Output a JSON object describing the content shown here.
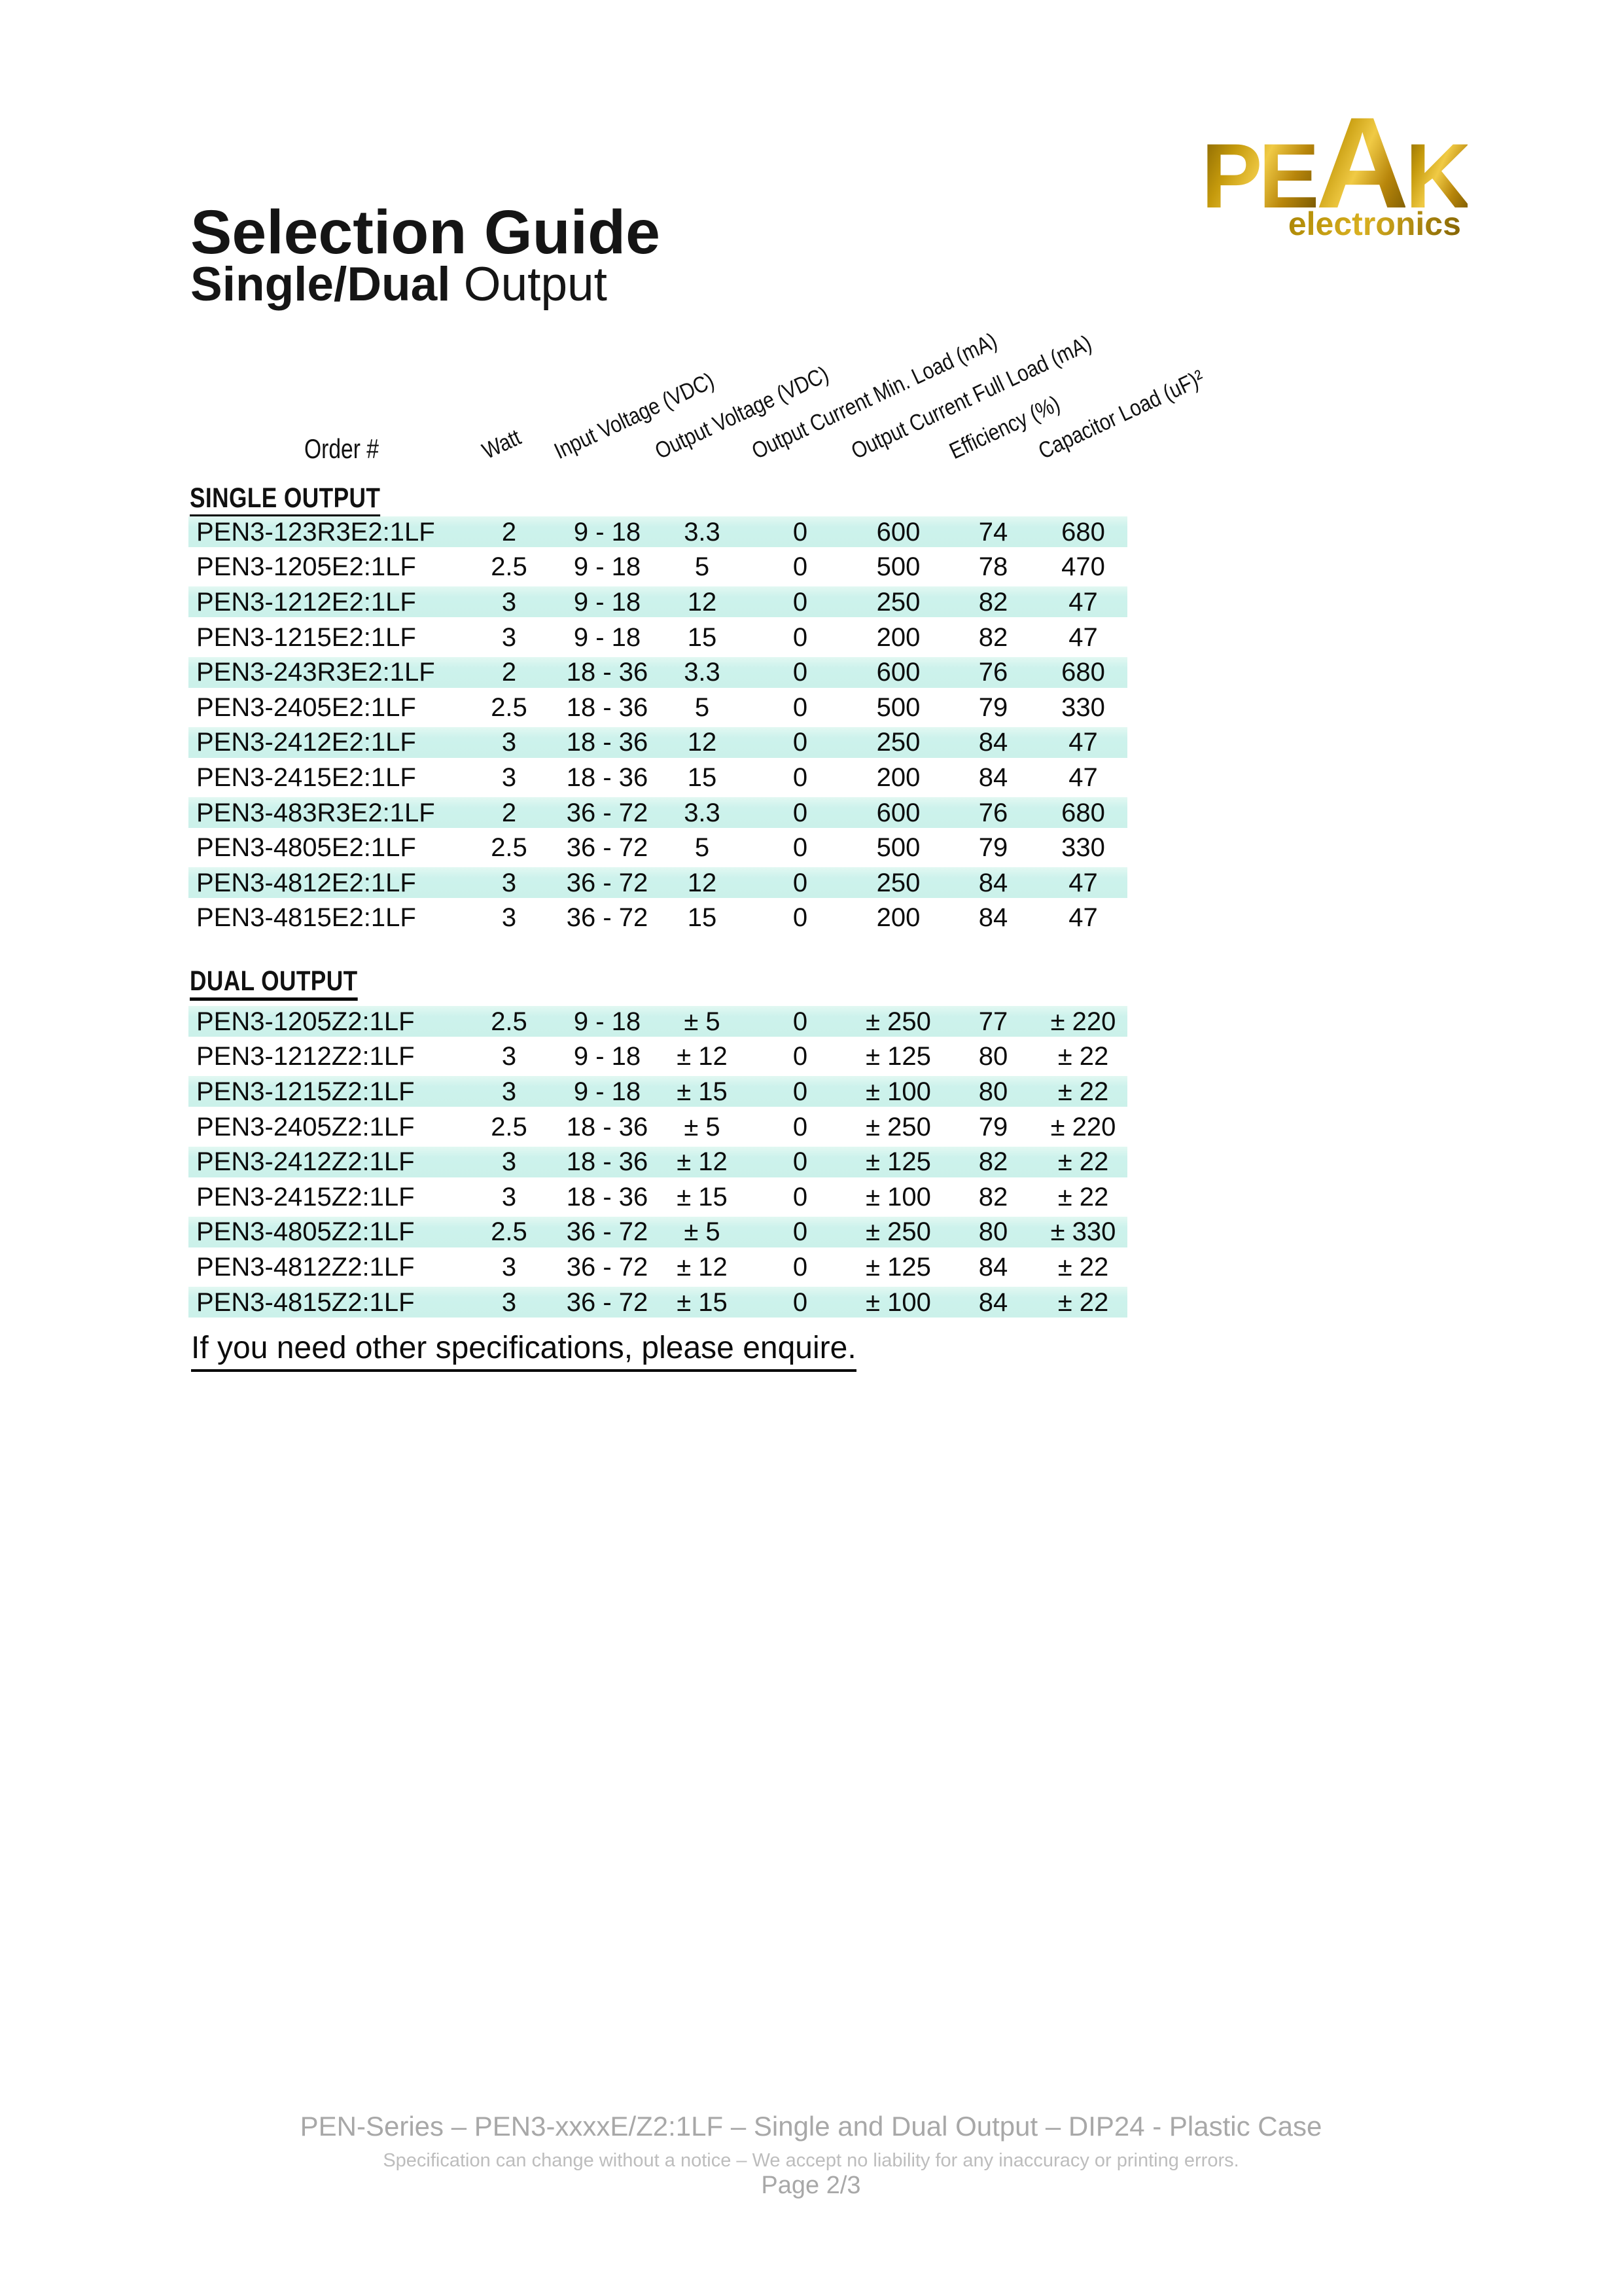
{
  "page": {
    "title": "Selection Guide",
    "subtitle_bold": "Single/Dual",
    "subtitle_rest": " Output",
    "note": "If you need other specifications, please enquire."
  },
  "logo": {
    "part1": "PE",
    "accent": "A",
    "part2": "K",
    "sub": "electronics",
    "gold_color": "#c59a0c"
  },
  "colors": {
    "row_highlight": "#cdf2ec",
    "footer_gray": "#a8a8a8",
    "text": "#0c0c0c"
  },
  "table": {
    "col_headers": [
      "Order #",
      "Watt",
      "Input Voltage (VDC)",
      "Output Voltage (VDC)",
      "Output Current Min. Load (mA)",
      "Output Current Full Load (mA)",
      "Efficiency (%)",
      "Capacitor Load (uF)²"
    ],
    "sections": [
      {
        "title": "SINGLE OUTPUT",
        "rows": [
          [
            "PEN3-123R3E2:1LF",
            "2",
            "9 - 18",
            "3.3",
            "0",
            "600",
            "74",
            "680"
          ],
          [
            "PEN3-1205E2:1LF",
            "2.5",
            "9 - 18",
            "5",
            "0",
            "500",
            "78",
            "470"
          ],
          [
            "PEN3-1212E2:1LF",
            "3",
            "9 - 18",
            "12",
            "0",
            "250",
            "82",
            "47"
          ],
          [
            "PEN3-1215E2:1LF",
            "3",
            "9 - 18",
            "15",
            "0",
            "200",
            "82",
            "47"
          ],
          [
            "PEN3-243R3E2:1LF",
            "2",
            "18 - 36",
            "3.3",
            "0",
            "600",
            "76",
            "680"
          ],
          [
            "PEN3-2405E2:1LF",
            "2.5",
            "18 - 36",
            "5",
            "0",
            "500",
            "79",
            "330"
          ],
          [
            "PEN3-2412E2:1LF",
            "3",
            "18 - 36",
            "12",
            "0",
            "250",
            "84",
            "47"
          ],
          [
            "PEN3-2415E2:1LF",
            "3",
            "18 - 36",
            "15",
            "0",
            "200",
            "84",
            "47"
          ],
          [
            "PEN3-483R3E2:1LF",
            "2",
            "36 - 72",
            "3.3",
            "0",
            "600",
            "76",
            "680"
          ],
          [
            "PEN3-4805E2:1LF",
            "2.5",
            "36 - 72",
            "5",
            "0",
            "500",
            "79",
            "330"
          ],
          [
            "PEN3-4812E2:1LF",
            "3",
            "36 - 72",
            "12",
            "0",
            "250",
            "84",
            "47"
          ],
          [
            "PEN3-4815E2:1LF",
            "3",
            "36 - 72",
            "15",
            "0",
            "200",
            "84",
            "47"
          ]
        ]
      },
      {
        "title": "DUAL OUTPUT",
        "rows": [
          [
            "PEN3-1205Z2:1LF",
            "2.5",
            "9 - 18",
            "± 5",
            "0",
            "± 250",
            "77",
            "± 220"
          ],
          [
            "PEN3-1212Z2:1LF",
            "3",
            "9 - 18",
            "± 12",
            "0",
            "± 125",
            "80",
            "± 22"
          ],
          [
            "PEN3-1215Z2:1LF",
            "3",
            "9 - 18",
            "± 15",
            "0",
            "± 100",
            "80",
            "± 22"
          ],
          [
            "PEN3-2405Z2:1LF",
            "2.5",
            "18 - 36",
            "± 5",
            "0",
            "± 250",
            "79",
            "± 220"
          ],
          [
            "PEN3-2412Z2:1LF",
            "3",
            "18 - 36",
            "± 12",
            "0",
            "± 125",
            "82",
            "± 22"
          ],
          [
            "PEN3-2415Z2:1LF",
            "3",
            "18 - 36",
            "± 15",
            "0",
            "± 100",
            "82",
            "± 22"
          ],
          [
            "PEN3-4805Z2:1LF",
            "2.5",
            "36 - 72",
            "± 5",
            "0",
            "± 250",
            "80",
            "± 330"
          ],
          [
            "PEN3-4812Z2:1LF",
            "3",
            "36 - 72",
            "± 12",
            "0",
            "± 125",
            "84",
            "± 22"
          ],
          [
            "PEN3-4815Z2:1LF",
            "3",
            "36 - 72",
            "± 15",
            "0",
            "± 100",
            "84",
            "± 22"
          ]
        ]
      }
    ]
  },
  "footer": {
    "line1": "PEN-Series – PEN3-xxxxE/Z2:1LF – Single and Dual Output – DIP24 - Plastic Case",
    "line2": "Specification can change without a notice – We accept no liability for any inaccuracy or printing errors.",
    "line3": "Page 2/3"
  }
}
